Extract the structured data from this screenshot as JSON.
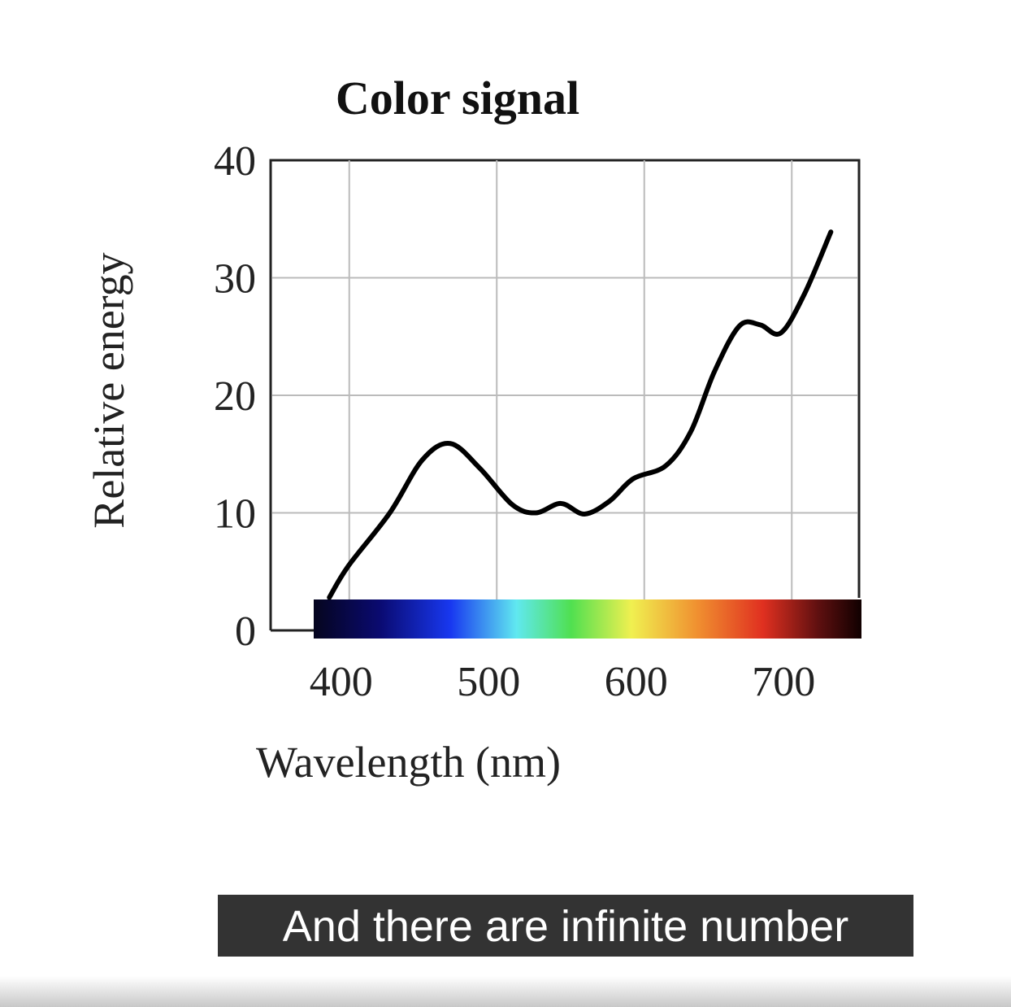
{
  "chart_data": {
    "type": "line",
    "title": "Color signal",
    "x_label": "Wavelength (nm)",
    "y_label": "Relative energy",
    "xlim": [
      350,
      750
    ],
    "xticks": [
      400,
      500,
      600,
      700
    ],
    "ylim": [
      0,
      40
    ],
    "yticks": [
      0,
      10,
      20,
      30,
      40
    ],
    "grid": true,
    "series": [
      {
        "color": "#000000",
        "x": [
          392,
          405,
          433,
          455,
          474,
          494,
          516,
          532,
          549,
          565,
          582,
          598,
          620,
          637,
          653,
          670,
          684,
          698,
          714,
          732
        ],
        "values": [
          2.8,
          5.5,
          10,
          14.5,
          15.9,
          13.8,
          10.7,
          10,
          10.8,
          9.9,
          11,
          12.9,
          14,
          16.9,
          22,
          25.9,
          26,
          25.3,
          28.6,
          33.9
        ]
      }
    ]
  },
  "caption": "And there are infinite number"
}
